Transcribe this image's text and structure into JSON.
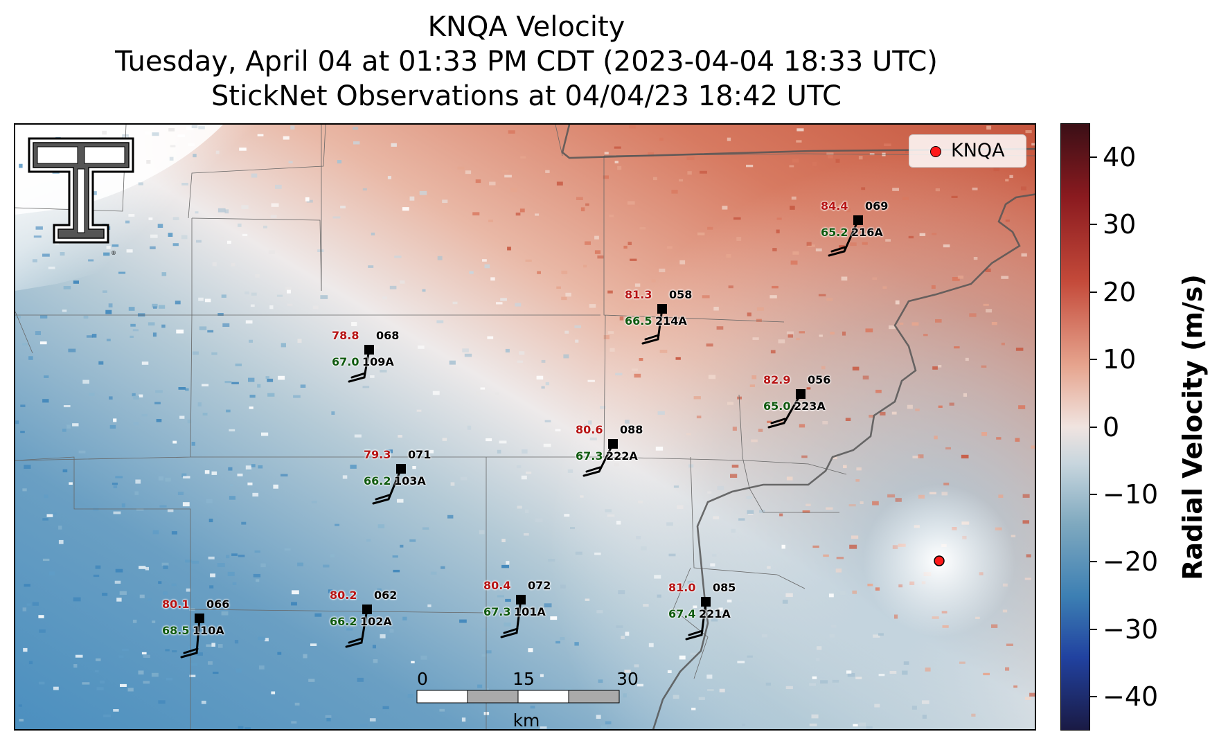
{
  "title": {
    "line1": "KNQA Velocity",
    "line2": "Tuesday, April 04 at 01:33 PM CDT (2023-04-04 18:33 UTC)",
    "line3": "StickNet Observations at 04/04/23 18:42 UTC"
  },
  "legend": {
    "label": "KNQA"
  },
  "colorbar": {
    "label": "Radial Velocity (m/s)",
    "ticks": [
      40,
      30,
      20,
      10,
      0,
      -10,
      -20,
      -30,
      -40
    ],
    "tick_labels": [
      "40",
      "30",
      "20",
      "10",
      "0",
      "−10",
      "−20",
      "−30",
      "−40"
    ],
    "range": [
      -45,
      45
    ],
    "colors": {
      "max": "#3b0f16",
      "high": "#c44a3a",
      "zero": "#f0e4e0",
      "low": "#3c7fb3",
      "min": "#1a1a44"
    }
  },
  "scalebar": {
    "labels": [
      "0",
      "15",
      "30"
    ],
    "unit": "km"
  },
  "stations": [
    {
      "temp": "84.4",
      "dir": "069",
      "dew": "65.2",
      "id": "216A"
    },
    {
      "temp": "81.3",
      "dir": "058",
      "dew": "66.5",
      "id": "214A"
    },
    {
      "temp": "78.8",
      "dir": "068",
      "dew": "67.0",
      "id": "109A"
    },
    {
      "temp": "82.9",
      "dir": "056",
      "dew": "65.0",
      "id": "223A"
    },
    {
      "temp": "80.6",
      "dir": "088",
      "dew": "67.3",
      "id": "222A"
    },
    {
      "temp": "79.3",
      "dir": "071",
      "dew": "66.2",
      "id": "103A"
    },
    {
      "temp": "80.1",
      "dir": "066",
      "dew": "68.5",
      "id": "110A"
    },
    {
      "temp": "80.2",
      "dir": "062",
      "dew": "66.2",
      "id": "102A"
    },
    {
      "temp": "80.4",
      "dir": "072",
      "dew": "67.3",
      "id": "101A"
    },
    {
      "temp": "81.0",
      "dir": "085",
      "dew": "67.4",
      "id": "221A"
    }
  ],
  "radar_site_color": "#ff1a1a",
  "logo": "texas-tech-double-t-logo"
}
